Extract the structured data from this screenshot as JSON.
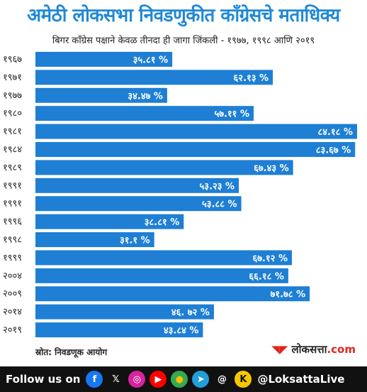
{
  "header": {
    "title": "अमेठी लोकसभा निवडणुकीत काँग्रेसचे मताधिक्य",
    "subtitle": "बिगर काँग्रेस पक्षाने केवळ तीनदा ही जागा जिंकली - १९७७, १९९८ आणि २०१९"
  },
  "chart_data": {
    "type": "bar",
    "orientation": "horizontal",
    "categories": [
      "१९६७",
      "१९७१",
      "१९७७",
      "१९८०",
      "१९८१",
      "१९८४",
      "१९८९",
      "१९९१",
      "१९९१",
      "१९९६",
      "१९९८",
      "१९९९",
      "२००४",
      "२००९",
      "२०१४",
      "२०१९"
    ],
    "values": [
      35.81,
      62.13,
      34.47,
      57.11,
      84.18,
      83.67,
      67.43,
      53.23,
      53.88,
      38.81,
      31.1,
      67.12,
      66.18,
      71.78,
      46.72,
      43.84
    ],
    "labels": [
      "३५.८१ %",
      "६२.१३ %",
      "३४.४७ %",
      "५७.११ %",
      "८४.१८ %",
      "८३.६७ %",
      "६७.४३ %",
      "५३.२३ %",
      "५३.८८ %",
      "३८.८१ %",
      "३१.१ %",
      "६७.१२ %",
      "६६.१८ %",
      "७१.७८ %",
      "४६. ७२ %",
      "४३.८४ %"
    ],
    "xlim": [
      0,
      84.18
    ],
    "bar_color": "#1e7fd4",
    "grid": false
  },
  "footer": {
    "source": "स्रोत: निवडणूक आयोग",
    "brand_main": "लोकसत्ता",
    "brand_suffix": ".com",
    "follow_label": "Follow us on",
    "handle": "@LoksattaLive",
    "icons": [
      {
        "name": "facebook-icon",
        "glyph": "f",
        "bg": "#1877f2",
        "fg": "#ffffff"
      },
      {
        "name": "x-icon",
        "glyph": "𝕏",
        "bg": "#111111",
        "fg": "#ffffff"
      },
      {
        "name": "instagram-icon",
        "glyph": "◎",
        "bg": "#d6249f",
        "fg": "#ffffff"
      },
      {
        "name": "youtube-icon",
        "glyph": "▶",
        "bg": "#ff0000",
        "fg": "#ffffff"
      },
      {
        "name": "chrome-icon",
        "glyph": "●",
        "bg": "#34a853",
        "fg": "#fbbc05"
      },
      {
        "name": "telegram-icon",
        "glyph": "➤",
        "bg": "#229ed9",
        "fg": "#ffffff"
      },
      {
        "name": "threads-icon",
        "glyph": "@",
        "bg": "#111111",
        "fg": "#ffffff"
      },
      {
        "name": "koo-icon",
        "glyph": "K",
        "bg": "#f6c700",
        "fg": "#111111"
      }
    ]
  }
}
